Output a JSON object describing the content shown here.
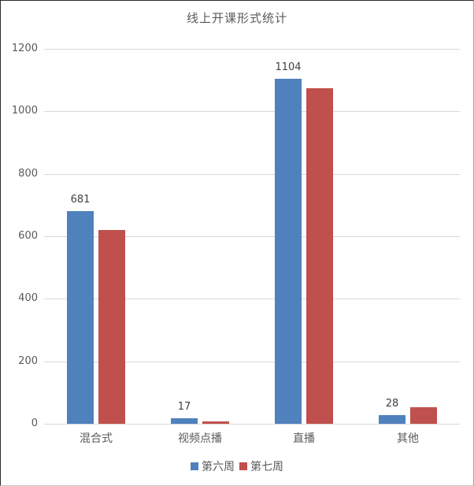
{
  "title": "线上开课形式统计",
  "colors": {
    "series_week6": "#4F81BD",
    "series_week7": "#C0504D",
    "gridline": "#D9D9D9",
    "axis_text": "#595959",
    "value_label_text": "#404040",
    "title_text": "#595959"
  },
  "legend": {
    "week6_label": "第六周",
    "week7_label": "第七周"
  },
  "chart_data": {
    "type": "bar",
    "title": "线上开课形式统计",
    "categories": [
      "混合式",
      "视频点播",
      "直播",
      "其他"
    ],
    "series": [
      {
        "name": "第六周",
        "color": "#4F81BD",
        "values": [
          681,
          17,
          1104,
          28
        ],
        "data_labels": [
          "681",
          "17",
          "1104",
          "28"
        ]
      },
      {
        "name": "第七周",
        "color": "#C0504D",
        "values": [
          620,
          8,
          1075,
          53
        ],
        "data_labels": []
      }
    ],
    "xlabel": "",
    "ylabel": "",
    "ylim": [
      0,
      1200
    ],
    "ytick_step": 200,
    "ytick_labels": [
      "0",
      "200",
      "400",
      "600",
      "800",
      "1000",
      "1200"
    ],
    "grid": true,
    "legend_position": "bottom"
  }
}
